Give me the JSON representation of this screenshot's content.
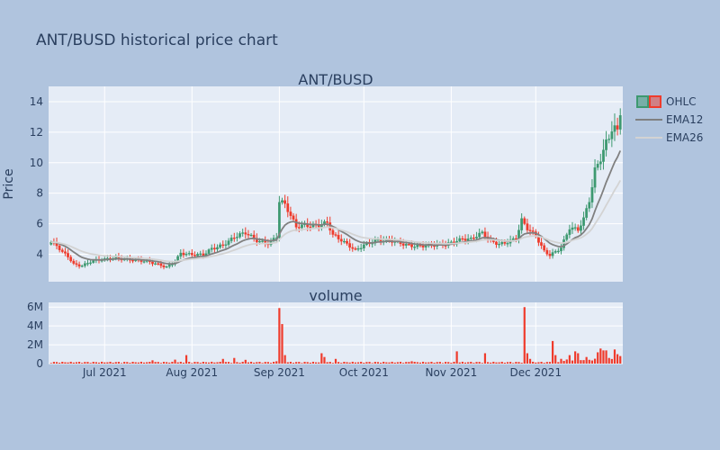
{
  "title": "ANT/BUSD historical price chart",
  "colors": {
    "page_bg": "#b0c4de",
    "plot_bg": "#e5ecf6",
    "grid": "#ffffff",
    "text": "#2a3f5f",
    "increasing": "#3d9970",
    "decreasing": "#ef3b2c",
    "ema12": "#808080",
    "ema26": "#d3d3d3",
    "volume": "#ef3b2c"
  },
  "legend": {
    "position": "top-right",
    "items": [
      {
        "label": "OHLC",
        "kind": "ohlc"
      },
      {
        "label": "EMA12",
        "kind": "line",
        "color": "#808080"
      },
      {
        "label": "EMA26",
        "kind": "line",
        "color": "#d3d3d3"
      }
    ]
  },
  "chart_data": [
    {
      "type": "ohlc",
      "subplot_title": "ANT/BUSD",
      "ylabel": "Price",
      "xlabel": "",
      "ylim": [
        2.2,
        15
      ],
      "yticks": [
        4,
        6,
        8,
        10,
        12,
        14
      ],
      "x_start": "2021-06-12",
      "x_end": "2021-12-31",
      "xticks": [
        "Jul 2021",
        "Aug 2021",
        "Sep 2021",
        "Oct 2021",
        "Nov 2021",
        "Dec 2021"
      ],
      "xtick_dates": [
        "2021-07-01",
        "2021-08-01",
        "2021-09-01",
        "2021-10-01",
        "2021-11-01",
        "2021-12-01"
      ],
      "grid": true,
      "price_keypoints": [
        [
          "2021-06-12",
          4.7
        ],
        [
          "2021-06-14",
          4.5
        ],
        [
          "2021-06-16",
          4.1
        ],
        [
          "2021-06-18",
          3.9
        ],
        [
          "2021-06-20",
          3.4
        ],
        [
          "2021-06-23",
          3.3
        ],
        [
          "2021-06-26",
          3.5
        ],
        [
          "2021-07-01",
          3.6
        ],
        [
          "2021-07-05",
          3.8
        ],
        [
          "2021-07-10",
          3.7
        ],
        [
          "2021-07-15",
          3.5
        ],
        [
          "2021-07-20",
          3.3
        ],
        [
          "2021-07-23",
          3.2
        ],
        [
          "2021-07-26",
          3.6
        ],
        [
          "2021-07-28",
          4.1
        ],
        [
          "2021-08-01",
          3.9
        ],
        [
          "2021-08-05",
          3.9
        ],
        [
          "2021-08-08",
          4.4
        ],
        [
          "2021-08-12",
          4.7
        ],
        [
          "2021-08-16",
          5.1
        ],
        [
          "2021-08-20",
          5.3
        ],
        [
          "2021-08-24",
          4.9
        ],
        [
          "2021-08-28",
          4.8
        ],
        [
          "2021-08-31",
          5.2
        ],
        [
          "2021-09-01",
          7.5
        ],
        [
          "2021-09-03",
          7.2
        ],
        [
          "2021-09-05",
          6.4
        ],
        [
          "2021-09-07",
          5.7
        ],
        [
          "2021-09-10",
          5.9
        ],
        [
          "2021-09-14",
          6.0
        ],
        [
          "2021-09-18",
          6.1
        ],
        [
          "2021-09-20",
          5.2
        ],
        [
          "2021-09-24",
          4.7
        ],
        [
          "2021-09-28",
          4.3
        ],
        [
          "2021-10-01",
          4.7
        ],
        [
          "2021-10-05",
          4.9
        ],
        [
          "2021-10-10",
          4.8
        ],
        [
          "2021-10-15",
          4.7
        ],
        [
          "2021-10-20",
          4.6
        ],
        [
          "2021-10-25",
          4.5
        ],
        [
          "2021-10-30",
          4.6
        ],
        [
          "2021-11-02",
          4.9
        ],
        [
          "2021-11-05",
          5.1
        ],
        [
          "2021-11-08",
          5.0
        ],
        [
          "2021-11-12",
          5.3
        ],
        [
          "2021-11-15",
          4.8
        ],
        [
          "2021-11-18",
          4.7
        ],
        [
          "2021-11-21",
          4.9
        ],
        [
          "2021-11-24",
          5.1
        ],
        [
          "2021-11-26",
          6.2
        ],
        [
          "2021-11-28",
          5.6
        ],
        [
          "2021-12-01",
          5.1
        ],
        [
          "2021-12-04",
          4.2
        ],
        [
          "2021-12-06",
          4.0
        ],
        [
          "2021-12-10",
          4.5
        ],
        [
          "2021-12-13",
          5.7
        ],
        [
          "2021-12-16",
          5.5
        ],
        [
          "2021-12-18",
          6.2
        ],
        [
          "2021-12-20",
          7.5
        ],
        [
          "2021-12-22",
          9.5
        ],
        [
          "2021-12-24",
          10.8
        ],
        [
          "2021-12-26",
          11.5
        ],
        [
          "2021-12-28",
          12.6
        ],
        [
          "2021-12-30",
          11.8
        ],
        [
          "2021-12-31",
          13.2
        ]
      ],
      "series": [
        {
          "name": "OHLC",
          "kind": "ohlc"
        },
        {
          "name": "EMA12",
          "kind": "ema",
          "span": 12
        },
        {
          "name": "EMA26",
          "kind": "ema",
          "span": 26
        }
      ]
    },
    {
      "type": "bar",
      "subplot_title": "volume",
      "ylabel": "",
      "ylim": [
        0,
        6500000
      ],
      "yticks": [
        0,
        2000000,
        4000000,
        6000000
      ],
      "ytick_labels": [
        "0",
        "2M",
        "4M",
        "6M"
      ],
      "baseline_volume": 150000,
      "volume_spikes": [
        [
          "2021-07-18",
          350000
        ],
        [
          "2021-07-26",
          420000
        ],
        [
          "2021-07-30",
          900000
        ],
        [
          "2021-08-12",
          500000
        ],
        [
          "2021-08-16",
          600000
        ],
        [
          "2021-08-20",
          400000
        ],
        [
          "2021-08-31",
          250000
        ],
        [
          "2021-09-01",
          5900000
        ],
        [
          "2021-09-02",
          4200000
        ],
        [
          "2021-09-03",
          900000
        ],
        [
          "2021-09-16",
          1100000
        ],
        [
          "2021-09-17",
          700000
        ],
        [
          "2021-09-21",
          500000
        ],
        [
          "2021-10-18",
          250000
        ],
        [
          "2021-11-03",
          1300000
        ],
        [
          "2021-11-13",
          1100000
        ],
        [
          "2021-11-27",
          6000000
        ],
        [
          "2021-11-28",
          1100000
        ],
        [
          "2021-11-29",
          500000
        ],
        [
          "2021-12-07",
          2400000
        ],
        [
          "2021-12-08",
          900000
        ],
        [
          "2021-12-13",
          900000
        ],
        [
          "2021-12-15",
          1300000
        ],
        [
          "2021-12-16",
          1100000
        ],
        [
          "2021-12-19",
          700000
        ],
        [
          "2021-12-23",
          1200000
        ],
        [
          "2021-12-24",
          1600000
        ],
        [
          "2021-12-25",
          1400000
        ],
        [
          "2021-12-26",
          1400000
        ],
        [
          "2021-12-27",
          600000
        ],
        [
          "2021-12-29",
          1500000
        ],
        [
          "2021-12-30",
          1000000
        ],
        [
          "2021-12-31",
          800000
        ]
      ],
      "series": [
        {
          "name": "volume",
          "color": "#ef3b2c"
        }
      ]
    }
  ]
}
